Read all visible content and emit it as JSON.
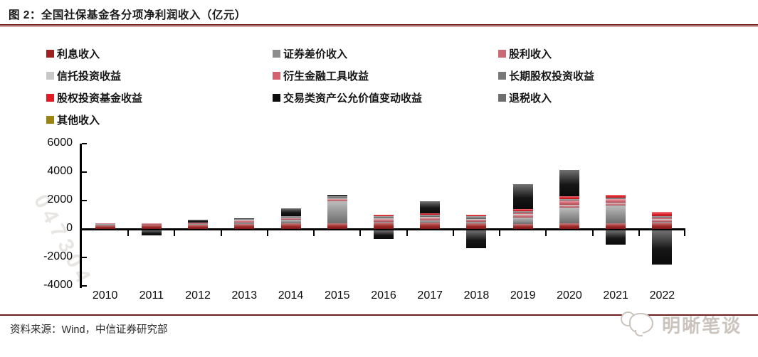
{
  "title": "图 2：全国社保基金各分项净利润收入（亿元）",
  "source": {
    "text": "资料来源：Wind，中信证券研究部"
  },
  "watermark": {
    "text": "明晰笔谈",
    "diagonal_text": "047304"
  },
  "theme": {
    "rule_color": "#6f1d1d",
    "rule_light_color": "#cf8c8c",
    "axis_color": "#000000",
    "watermark_color": "#cbc4bd"
  },
  "legend_columns": [
    [
      0,
      3,
      6,
      9
    ],
    [
      1,
      4,
      7
    ],
    [
      2,
      5,
      8
    ]
  ],
  "chart_data": {
    "type": "bar",
    "subtype": "stacked",
    "title": "图 2：全国社保基金各分项净利润收入（亿元）",
    "unit": "亿元",
    "categories": [
      "2010",
      "2011",
      "2012",
      "2013",
      "2014",
      "2015",
      "2016",
      "2017",
      "2018",
      "2019",
      "2020",
      "2021",
      "2022"
    ],
    "ylim": [
      -4000,
      6000
    ],
    "yticks": [
      6000,
      4000,
      2000,
      0,
      -2000,
      -4000
    ],
    "grid": false,
    "legend_position": "top",
    "series": [
      {
        "name": "利息收入",
        "color": "#9e2121",
        "values": [
          250,
          280,
          300,
          350,
          380,
          420,
          430,
          450,
          420,
          350,
          400,
          420,
          450
        ]
      },
      {
        "name": "证券差价收入",
        "color": "#8c8c8c",
        "values": [
          90,
          0,
          30,
          120,
          250,
          1550,
          80,
          150,
          80,
          450,
          1100,
          1250,
          50
        ]
      },
      {
        "name": "股利收入",
        "color": "#c96a74",
        "values": [
          60,
          120,
          120,
          130,
          150,
          150,
          200,
          200,
          180,
          200,
          150,
          150,
          150
        ]
      },
      {
        "name": "信托投资收益",
        "color": "#c8c8c8",
        "values": [
          0,
          0,
          0,
          30,
          20,
          30,
          30,
          30,
          30,
          50,
          50,
          50,
          30
        ]
      },
      {
        "name": "衍生金融工具收益",
        "color": "#d4626e",
        "values": [
          0,
          0,
          0,
          0,
          0,
          0,
          0,
          0,
          0,
          100,
          300,
          250,
          100
        ]
      },
      {
        "name": "长期股权投资收益",
        "color": "#787878",
        "values": [
          0,
          0,
          0,
          50,
          100,
          150,
          150,
          150,
          170,
          100,
          100,
          100,
          100
        ]
      },
      {
        "name": "股权投资基金收益",
        "color": "#e01b24",
        "values": [
          0,
          0,
          0,
          0,
          0,
          0,
          100,
          100,
          100,
          150,
          200,
          200,
          300
        ]
      },
      {
        "name": "交易类资产公允价值变动收益",
        "color": "#0d0d0d",
        "values": [
          0,
          -350,
          200,
          70,
          550,
          100,
          -600,
          850,
          -1250,
          1750,
          1850,
          -1000,
          -2400
        ]
      },
      {
        "name": "退税收入",
        "color": "#6e6e6e",
        "values": [
          0,
          0,
          0,
          0,
          0,
          0,
          0,
          0,
          0,
          0,
          0,
          0,
          0
        ]
      },
      {
        "name": "其他收入",
        "color": "#9c8412",
        "values": [
          0,
          0,
          0,
          0,
          0,
          0,
          0,
          0,
          0,
          0,
          0,
          0,
          0
        ]
      }
    ]
  }
}
